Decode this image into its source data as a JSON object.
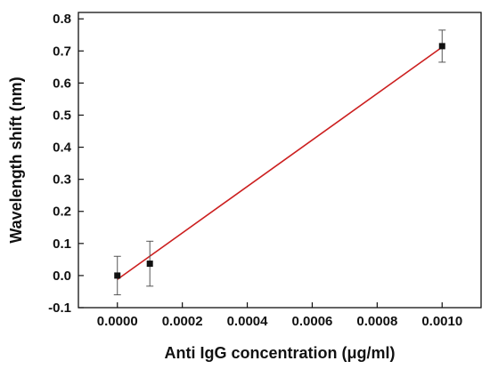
{
  "chart_data": {
    "type": "scatter",
    "xlabel": "Anti IgG concentration (μg/ml)",
    "ylabel": "Wavelength shift (nm)",
    "xlim": [
      -0.00012,
      0.00112
    ],
    "ylim": [
      -0.1,
      0.82
    ],
    "x_ticks": [
      "0.0000",
      "0.0002",
      "0.0004",
      "0.0006",
      "0.0008",
      "0.0010"
    ],
    "y_ticks": [
      "-0.1",
      "0.0",
      "0.1",
      "0.2",
      "0.3",
      "0.4",
      "0.5",
      "0.6",
      "0.7",
      "0.8"
    ],
    "grid": false,
    "series": [
      {
        "x": [
          0.0,
          0.0001,
          0.001
        ],
        "y": [
          0.0,
          0.037,
          0.715
        ],
        "error": [
          0.06,
          0.07,
          0.05
        ],
        "color": "#111111"
      }
    ],
    "fit_line": {
      "x": [
        0.0,
        0.001
      ],
      "y": [
        -0.012,
        0.712
      ],
      "color": "#cc1f1f"
    }
  }
}
